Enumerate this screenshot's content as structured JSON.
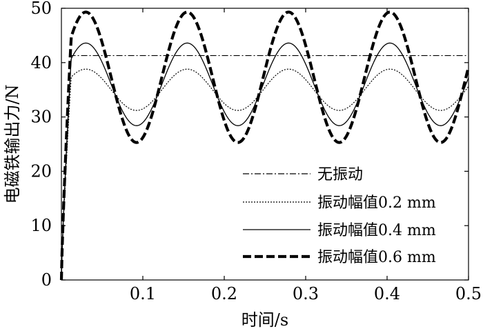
{
  "chart_data": {
    "type": "line",
    "xlabel": "时间/s",
    "ylabel": "电磁铁输出力/N",
    "xlim": [
      0,
      0.5
    ],
    "ylim": [
      0,
      50
    ],
    "xticks": [
      0.1,
      0.2,
      0.3,
      0.4,
      0.5
    ],
    "xtick_labels": [
      "0.1",
      "0.2",
      "0.3",
      "0.4",
      "0.5"
    ],
    "yticks": [
      0,
      10,
      20,
      30,
      40,
      50
    ],
    "ytick_labels": [
      "0",
      "10",
      "20",
      "30",
      "40",
      "50"
    ],
    "grid": false,
    "legend_position": "lower-right",
    "rise_end_x": 0.012,
    "oscillation": {
      "period": 0.1245,
      "first_peak_x": 0.03
    },
    "series": [
      {
        "name": "无振动",
        "style": "dashdot",
        "steady": 41.3,
        "amplitude": 0.0
      },
      {
        "name": "振动幅值0.2 mm",
        "style": "dotted",
        "steady": 35.0,
        "amplitude": 3.8
      },
      {
        "name": "振动幅值0.4 mm",
        "style": "solid",
        "steady": 36.0,
        "amplitude": 7.6
      },
      {
        "name": "振动幅值0.6 mm",
        "style": "thickdash",
        "steady": 37.3,
        "amplitude": 12.0
      }
    ]
  }
}
